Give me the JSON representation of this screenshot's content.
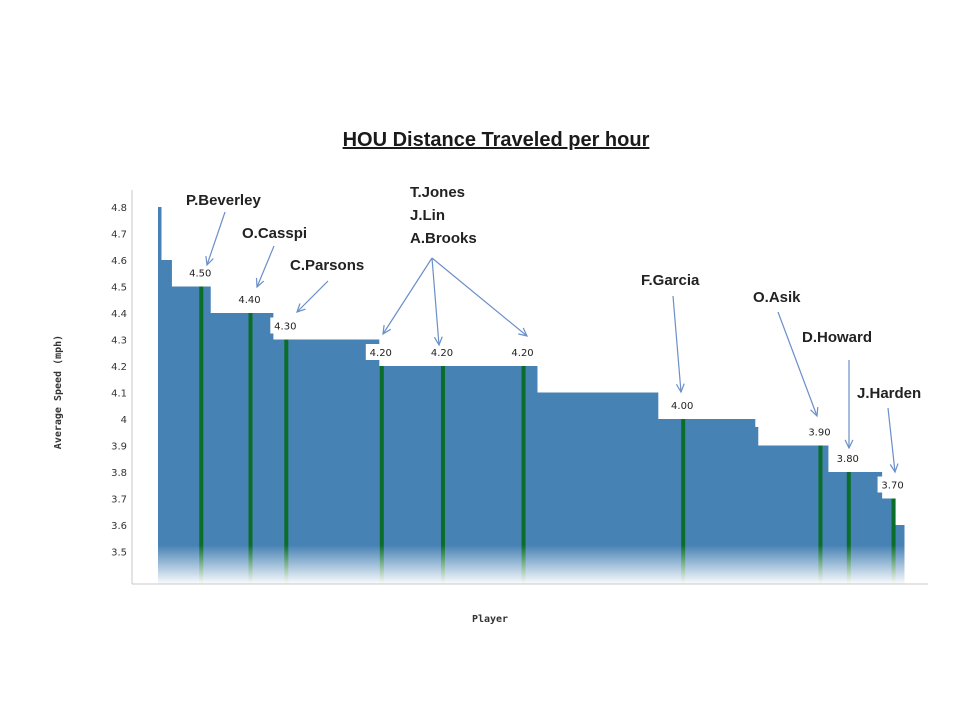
{
  "chart_data": {
    "type": "bar",
    "title": "HOU Distance Traveled per hour",
    "xlabel": "Player",
    "ylabel": "Average Speed (mph)",
    "ylim": [
      3.37,
      4.8
    ],
    "yticks": [
      "4.8",
      "4.7",
      "4.6",
      "4.5",
      "4.4",
      "4.3",
      "4.2",
      "4.1",
      "4",
      "3.9",
      "3.8",
      "3.7",
      "3.6",
      "3.5"
    ],
    "bar_color": "#4682b4",
    "highlight_color": "#0a6e2a",
    "x_range": [
      0,
      100
    ],
    "segments": [
      {
        "x0": 0,
        "x1": 0.4,
        "value": 4.8
      },
      {
        "x0": 0.4,
        "x1": 1.8,
        "value": 4.6
      },
      {
        "x0": 1.8,
        "x1": 7.0,
        "value": 4.5
      },
      {
        "x0": 7.0,
        "x1": 15.4,
        "value": 4.4
      },
      {
        "x0": 15.4,
        "x1": 29.6,
        "value": 4.3
      },
      {
        "x0": 29.6,
        "x1": 50.8,
        "value": 4.2
      },
      {
        "x0": 50.8,
        "x1": 67.0,
        "value": 4.1
      },
      {
        "x0": 67.0,
        "x1": 80.0,
        "value": 4.0
      },
      {
        "x0": 80.0,
        "x1": 80.4,
        "value": 3.97
      },
      {
        "x0": 80.4,
        "x1": 89.8,
        "value": 3.9
      },
      {
        "x0": 89.8,
        "x1": 97.0,
        "value": 3.8
      },
      {
        "x0": 97.0,
        "x1": 98.8,
        "value": 3.7
      },
      {
        "x0": 98.8,
        "x1": 100,
        "value": 3.6
      }
    ],
    "players": [
      {
        "name": "P.Beverley",
        "value": "4.50",
        "x": 5.8
      },
      {
        "name": "O.Casspi",
        "value": "4.40",
        "x": 12.4
      },
      {
        "name": "C.Parsons",
        "value": "4.30",
        "x": 17.2
      },
      {
        "name": "T.Jones",
        "value": "4.20",
        "x": 30.0
      },
      {
        "name": "J.Lin",
        "value": "4.20",
        "x": 38.2
      },
      {
        "name": "A.Brooks",
        "value": "4.20",
        "x": 49.0
      },
      {
        "name": "F.Garcia",
        "value": "4.00",
        "x": 70.4
      },
      {
        "name": "O.Asik",
        "value": "3.90",
        "x": 88.8
      },
      {
        "name": "D.Howard",
        "value": "3.80",
        "x": 92.6
      },
      {
        "name": "J.Harden",
        "value": "3.70",
        "x": 98.6
      }
    ]
  }
}
